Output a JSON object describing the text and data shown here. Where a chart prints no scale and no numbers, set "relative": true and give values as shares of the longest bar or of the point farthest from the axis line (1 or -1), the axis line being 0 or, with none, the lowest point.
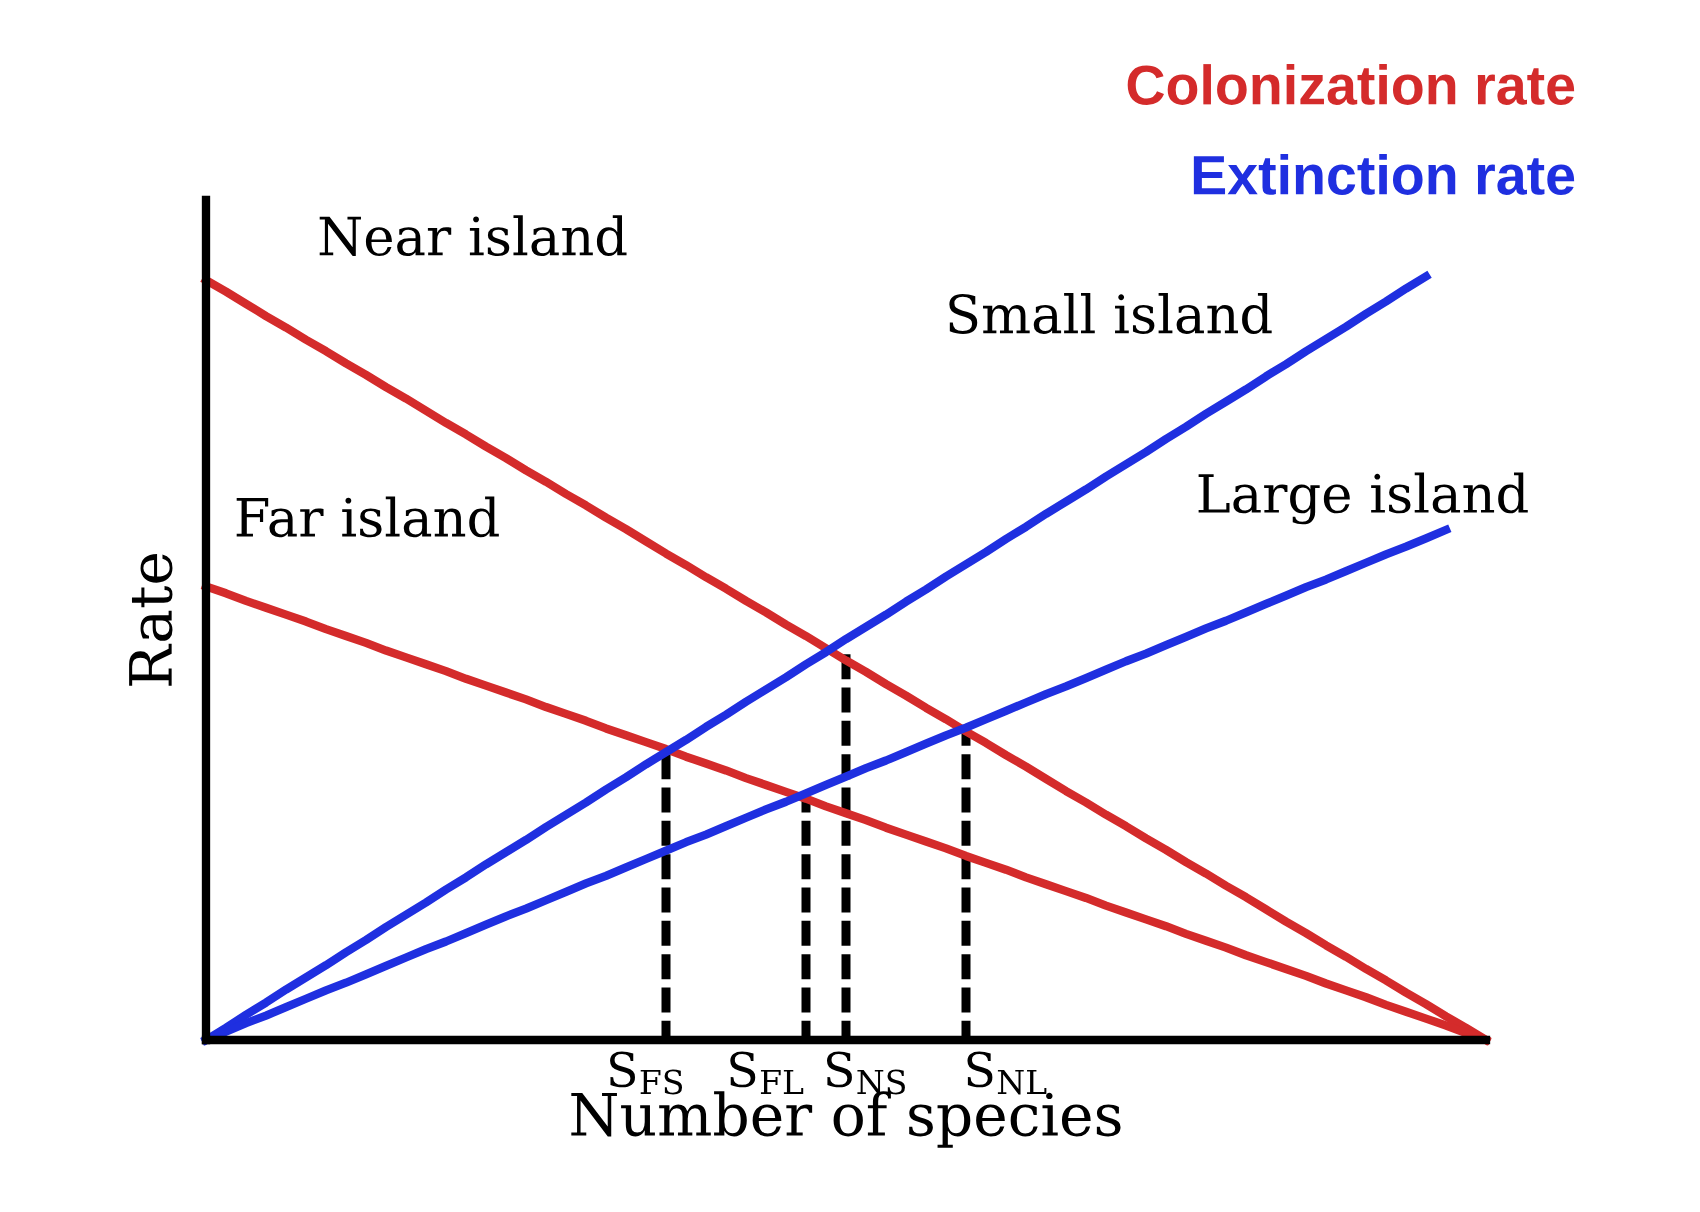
{
  "chart_data": {
    "type": "line",
    "relative": true,
    "xlabel": "Number of species",
    "ylabel": "Rate",
    "marker": "none",
    "categories": [
      null,
      null,
      null,
      null,
      null,
      null,
      null,
      null,
      null,
      null,
      null,
      null,
      null,
      null,
      null,
      null,
      null,
      null,
      null,
      null,
      null,
      null,
      "S$_{FS}$",
      null,
      null,
      null,
      null,
      null,
      "S$_{FL}$",
      null,
      null,
      null,
      null,
      "S$_{NS}$",
      null,
      null,
      null,
      null,
      null,
      null,
      "S$_{NL}$",
      null,
      null,
      null,
      null,
      null,
      null,
      null,
      null,
      null,
      null,
      null,
      null,
      null,
      null,
      null,
      null,
      null,
      null,
      null,
      null,
      null,
      null,
      null,
      null
    ],
    "annotations": [
      "Colonization rate",
      "Extinction rate"
    ],
    "series": [
      {
        "name": "Near island",
        "color": "#d42b2b",
        "values": [
          0.995,
          0.98,
          0.964,
          0.948,
          0.933,
          0.917,
          0.902,
          0.886,
          0.871,
          0.855,
          0.84,
          0.824,
          0.808,
          0.793,
          0.777,
          0.762,
          0.746,
          0.731,
          0.715,
          0.7,
          0.684,
          0.669,
          0.653,
          0.637,
          0.622,
          0.606,
          0.591,
          0.575,
          0.56,
          0.544,
          0.529,
          0.513,
          0.497,
          0.482,
          0.466,
          0.451,
          0.435,
          0.42,
          0.404,
          0.389,
          0.373,
          0.358,
          0.342,
          0.326,
          0.311,
          0.295,
          0.28,
          0.264,
          0.249,
          0.233,
          0.218,
          0.202,
          0.187,
          0.171,
          0.155,
          0.14,
          0.124,
          0.109,
          0.093,
          0.078,
          0.062,
          0.047,
          0.031,
          0.016,
          0
        ]
      },
      {
        "name": "Far island",
        "color": "#d42b2b",
        "values": [
          0.594,
          0.585,
          0.575,
          0.566,
          0.557,
          0.548,
          0.538,
          0.529,
          0.52,
          0.51,
          0.501,
          0.492,
          0.483,
          0.473,
          0.464,
          0.455,
          0.446,
          0.436,
          0.427,
          0.418,
          0.408,
          0.399,
          0.39,
          0.381,
          0.371,
          0.362,
          0.353,
          0.343,
          0.334,
          0.325,
          0.316,
          0.306,
          0.297,
          0.288,
          0.278,
          0.269,
          0.26,
          0.251,
          0.241,
          0.232,
          0.223,
          0.213,
          0.204,
          0.195,
          0.186,
          0.176,
          0.167,
          0.158,
          0.149,
          0.139,
          0.13,
          0.121,
          0.111,
          0.102,
          0.093,
          0.084,
          0.074,
          0.065,
          0.056,
          0.046,
          0.037,
          0.028,
          0.019,
          0.009,
          0
        ]
      },
      {
        "name": "Small island",
        "color": "#1f2fe0",
        "values": [
          0,
          0.016,
          0.033,
          0.049,
          0.066,
          0.082,
          0.098,
          0.115,
          0.131,
          0.148,
          0.164,
          0.18,
          0.197,
          0.213,
          0.23,
          0.246,
          0.262,
          0.279,
          0.295,
          0.311,
          0.328,
          0.344,
          0.361,
          0.377,
          0.393,
          0.41,
          0.426,
          0.443,
          0.459,
          0.475,
          0.492,
          0.508,
          0.525,
          0.541,
          0.557,
          0.574,
          0.59,
          0.607,
          0.623,
          0.639,
          0.656,
          0.672,
          0.689,
          0.705,
          0.721,
          0.738,
          0.754,
          0.77,
          0.787,
          0.803,
          0.82,
          0.836,
          0.852,
          0.869,
          0.885,
          0.902,
          0.918,
          0.934,
          0.951,
          0.967,
          0.984,
          1,
          null,
          null,
          null
        ]
      },
      {
        "name": "Large island",
        "color": "#1f2fe0",
        "values": [
          0,
          0.011,
          0.022,
          0.032,
          0.043,
          0.054,
          0.065,
          0.075,
          0.086,
          0.097,
          0.108,
          0.119,
          0.129,
          0.14,
          0.151,
          0.162,
          0.172,
          0.183,
          0.194,
          0.205,
          0.215,
          0.226,
          0.237,
          0.248,
          0.259,
          0.269,
          0.28,
          0.291,
          0.302,
          0.312,
          0.323,
          0.334,
          0.345,
          0.356,
          0.366,
          0.377,
          0.388,
          0.399,
          0.409,
          0.42,
          0.431,
          0.442,
          0.453,
          0.463,
          0.474,
          0.485,
          0.496,
          0.506,
          0.517,
          0.528,
          0.539,
          0.549,
          0.56,
          0.571,
          0.582,
          0.593,
          0.603,
          0.614,
          0.625,
          0.636,
          0.646,
          0.657,
          0.668,
          null,
          null
        ]
      },
      {
        "type": "bar",
        "color": "#000000",
        "line_style": "dotted",
        "values": [
          null,
          null,
          null,
          null,
          null,
          null,
          null,
          null,
          null,
          null,
          null,
          null,
          null,
          null,
          null,
          null,
          null,
          null,
          null,
          null,
          null,
          null,
          null,
          0.378,
          null,
          null,
          null,
          null,
          null,
          null,
          0.319,
          null,
          0.51,
          null,
          null,
          null,
          null,
          null,
          0.406,
          null,
          null,
          null,
          null,
          null,
          null,
          null,
          null,
          null,
          null,
          null,
          null,
          null,
          null,
          null,
          null,
          null,
          null,
          null,
          null,
          null,
          null,
          null,
          null,
          null,
          null
        ]
      }
    ]
  }
}
